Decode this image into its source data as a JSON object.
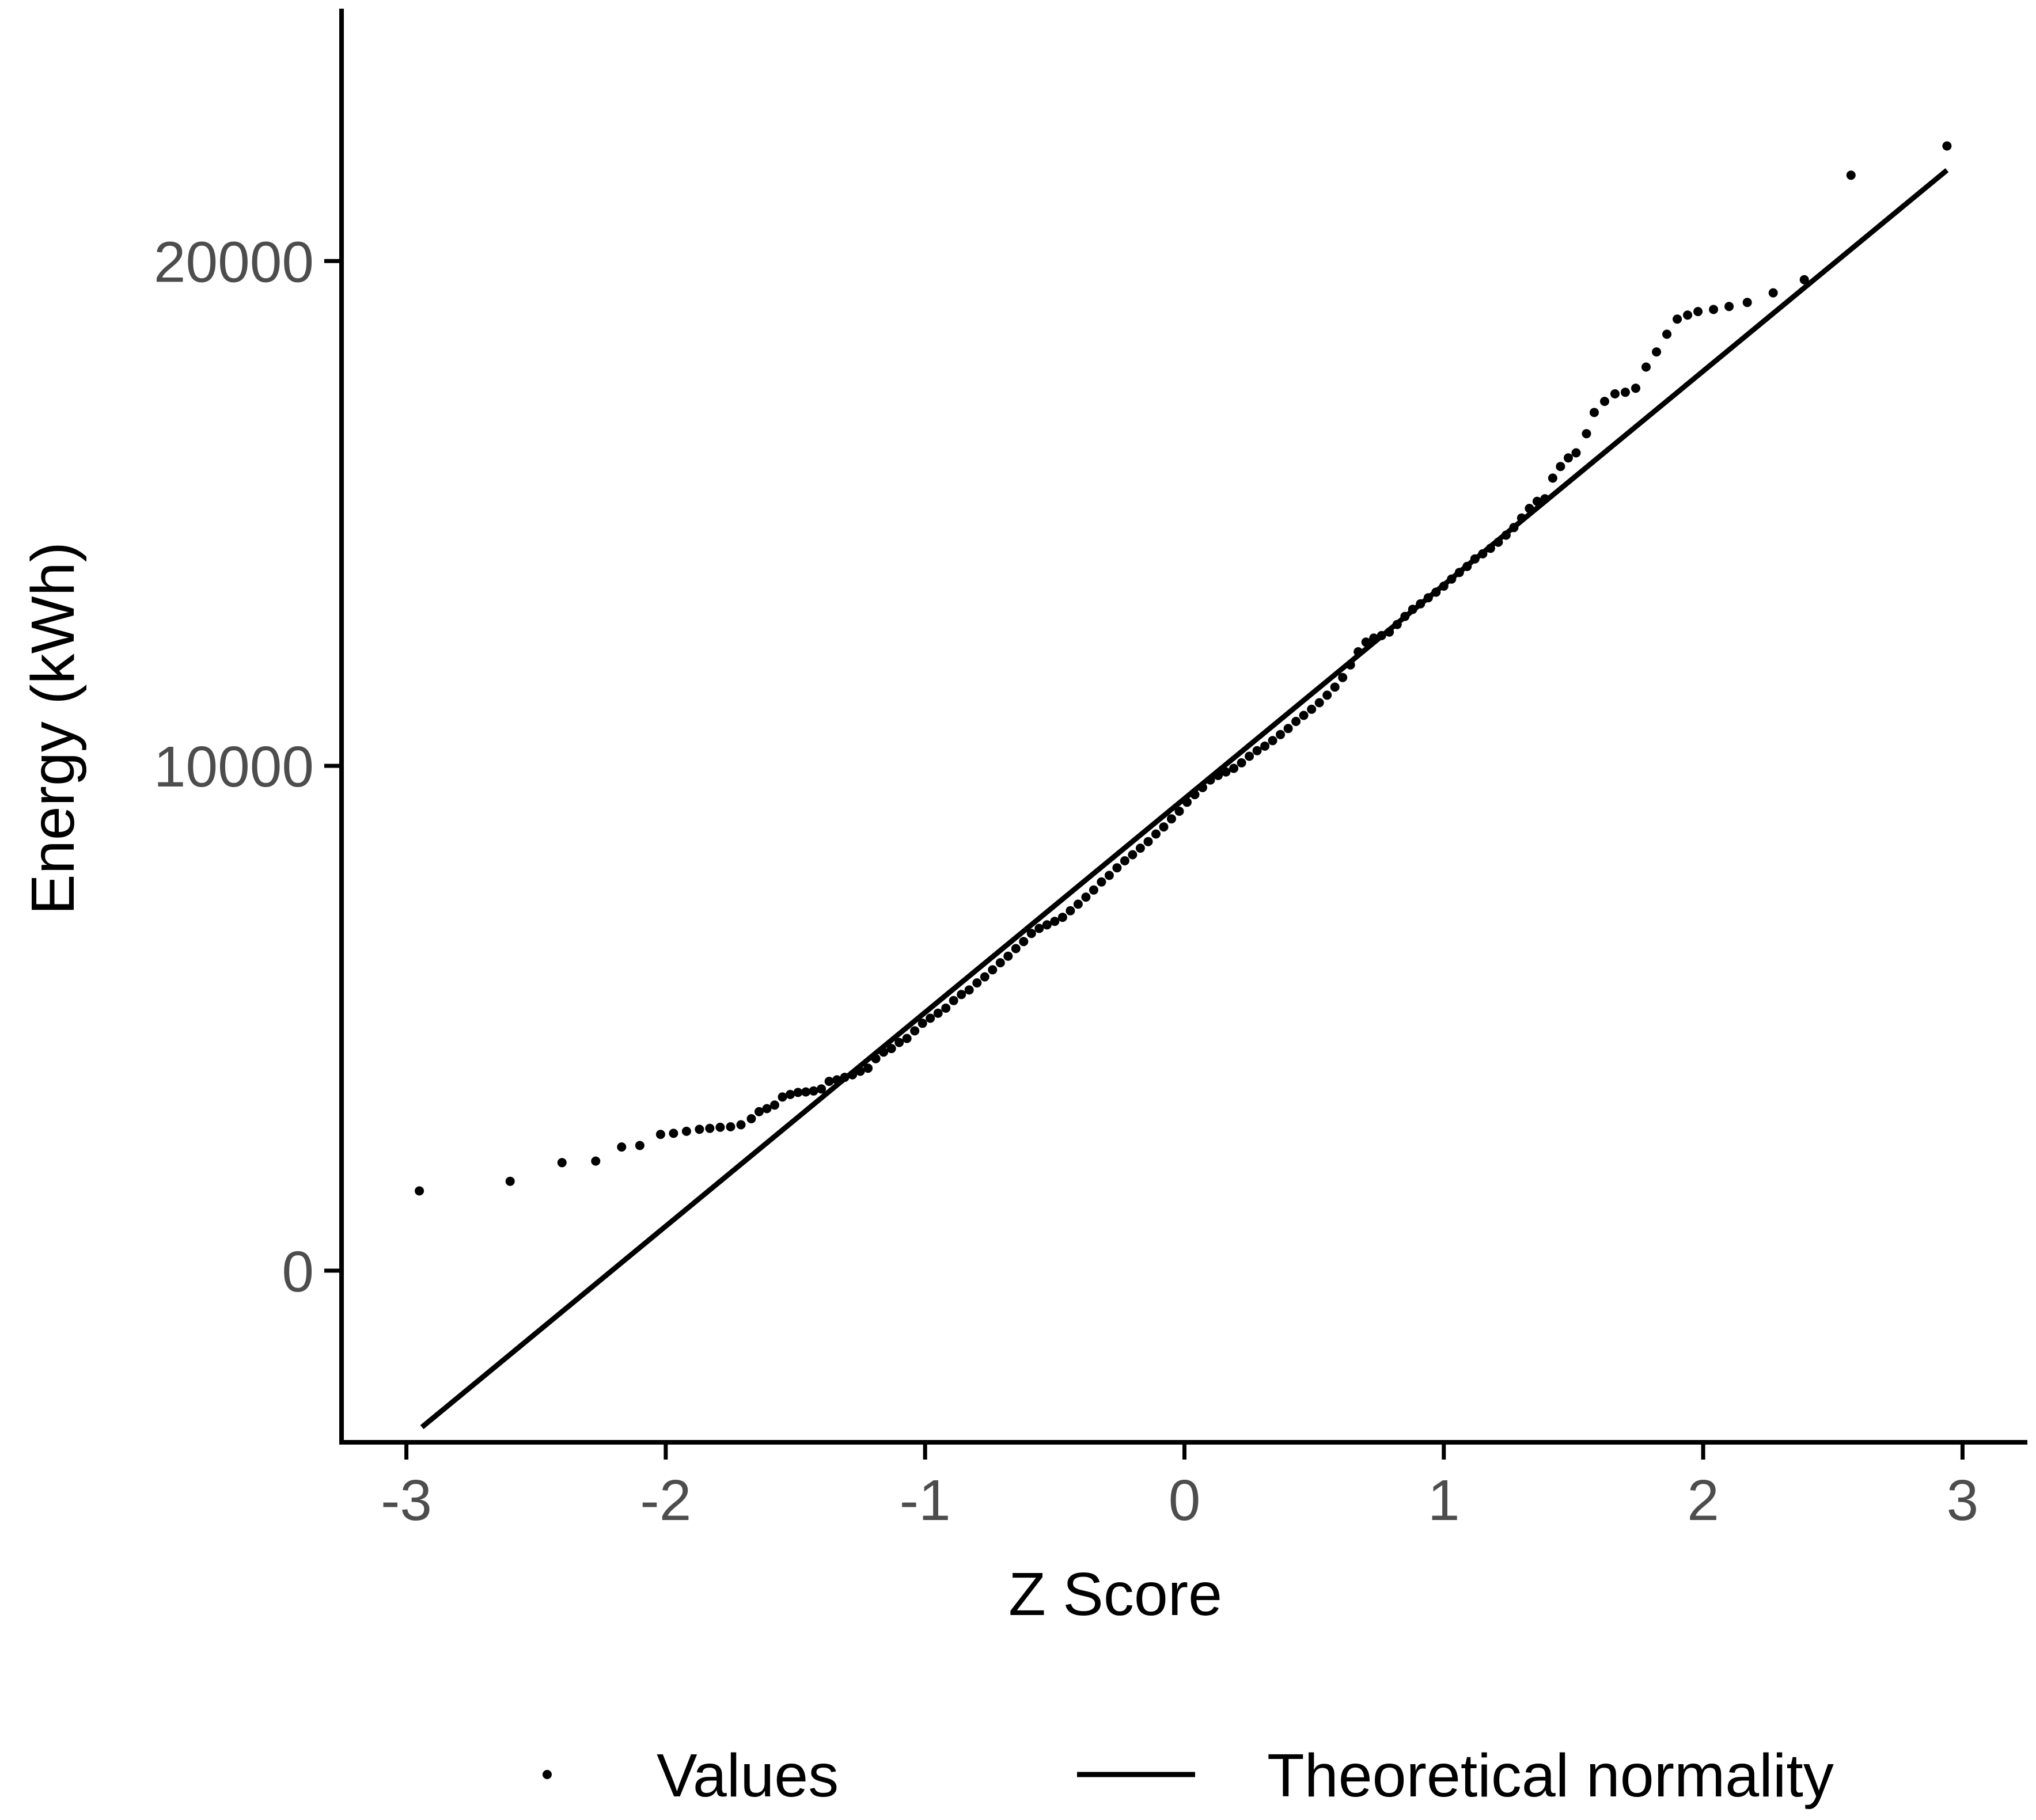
{
  "chart_data": {
    "type": "scatter",
    "title": "",
    "xlabel": "Z Score",
    "ylabel": "Energy (kWh)",
    "xlim": [
      -3.25,
      3.25
    ],
    "ylim": [
      -3400,
      25000
    ],
    "x_ticks": [
      -3,
      -2,
      -1,
      0,
      1,
      2,
      3
    ],
    "x_tick_labels": [
      "-3",
      "-2",
      "-1",
      "0",
      "1",
      "2",
      "3"
    ],
    "y_ticks": [
      0,
      10000,
      20000
    ],
    "y_tick_labels": [
      "0",
      "10000",
      "20000"
    ],
    "grid": false,
    "legend_position": "bottom",
    "series": [
      {
        "name": "Values",
        "kind": "points",
        "points": [
          [
            -2.95,
            1580
          ],
          [
            -2.6,
            1770
          ],
          [
            -2.4,
            2140
          ],
          [
            -2.27,
            2170
          ],
          [
            -2.17,
            2450
          ],
          [
            -2.1,
            2480
          ],
          [
            -2.02,
            2700
          ],
          [
            -1.97,
            2720
          ],
          [
            -1.92,
            2760
          ],
          [
            -1.87,
            2800
          ],
          [
            -1.83,
            2820
          ],
          [
            -1.79,
            2840
          ],
          [
            -1.75,
            2850
          ],
          [
            -1.71,
            2890
          ],
          [
            -1.67,
            3010
          ],
          [
            -1.64,
            3150
          ],
          [
            -1.61,
            3210
          ],
          [
            -1.58,
            3280
          ],
          [
            -1.55,
            3440
          ],
          [
            -1.52,
            3490
          ],
          [
            -1.49,
            3530
          ],
          [
            -1.46,
            3540
          ],
          [
            -1.43,
            3560
          ],
          [
            -1.4,
            3600
          ],
          [
            -1.37,
            3750
          ],
          [
            -1.34,
            3780
          ],
          [
            -1.31,
            3830
          ],
          [
            -1.28,
            3880
          ],
          [
            -1.25,
            3950
          ],
          [
            -1.22,
            4010
          ],
          [
            -1.19,
            4200
          ],
          [
            -1.16,
            4330
          ],
          [
            -1.13,
            4400
          ],
          [
            -1.1,
            4520
          ],
          [
            -1.07,
            4600
          ],
          [
            -1.04,
            4750
          ],
          [
            -1.01,
            4900
          ],
          [
            -0.98,
            5000
          ],
          [
            -0.95,
            5100
          ],
          [
            -0.92,
            5200
          ],
          [
            -0.89,
            5350
          ],
          [
            -0.86,
            5470
          ],
          [
            -0.83,
            5560
          ],
          [
            -0.8,
            5700
          ],
          [
            -0.77,
            5820
          ],
          [
            -0.74,
            5960
          ],
          [
            -0.71,
            6100
          ],
          [
            -0.68,
            6230
          ],
          [
            -0.65,
            6380
          ],
          [
            -0.62,
            6520
          ],
          [
            -0.59,
            6680
          ],
          [
            -0.56,
            6780
          ],
          [
            -0.53,
            6850
          ],
          [
            -0.5,
            6920
          ],
          [
            -0.47,
            7000
          ],
          [
            -0.44,
            7130
          ],
          [
            -0.41,
            7260
          ],
          [
            -0.38,
            7400
          ],
          [
            -0.35,
            7540
          ],
          [
            -0.32,
            7700
          ],
          [
            -0.29,
            7830
          ],
          [
            -0.26,
            7980
          ],
          [
            -0.23,
            8120
          ],
          [
            -0.2,
            8240
          ],
          [
            -0.17,
            8370
          ],
          [
            -0.14,
            8500
          ],
          [
            -0.11,
            8650
          ],
          [
            -0.08,
            8790
          ],
          [
            -0.05,
            8950
          ],
          [
            -0.02,
            9100
          ],
          [
            0.01,
            9280
          ],
          [
            0.04,
            9430
          ],
          [
            0.07,
            9570
          ],
          [
            0.1,
            9720
          ],
          [
            0.13,
            9810
          ],
          [
            0.16,
            9880
          ],
          [
            0.19,
            9950
          ],
          [
            0.22,
            10060
          ],
          [
            0.25,
            10190
          ],
          [
            0.28,
            10300
          ],
          [
            0.31,
            10390
          ],
          [
            0.34,
            10500
          ],
          [
            0.37,
            10620
          ],
          [
            0.4,
            10740
          ],
          [
            0.43,
            10880
          ],
          [
            0.46,
            11000
          ],
          [
            0.49,
            11120
          ],
          [
            0.52,
            11250
          ],
          [
            0.55,
            11400
          ],
          [
            0.58,
            11560
          ],
          [
            0.61,
            11750
          ],
          [
            0.64,
            12000
          ],
          [
            0.67,
            12260
          ],
          [
            0.7,
            12450
          ],
          [
            0.73,
            12530
          ],
          [
            0.76,
            12580
          ],
          [
            0.79,
            12650
          ],
          [
            0.82,
            12800
          ],
          [
            0.85,
            12960
          ],
          [
            0.88,
            13100
          ],
          [
            0.91,
            13210
          ],
          [
            0.94,
            13330
          ],
          [
            0.97,
            13440
          ],
          [
            1.0,
            13560
          ],
          [
            1.03,
            13700
          ],
          [
            1.06,
            13830
          ],
          [
            1.09,
            13950
          ],
          [
            1.12,
            14100
          ],
          [
            1.15,
            14200
          ],
          [
            1.18,
            14310
          ],
          [
            1.21,
            14430
          ],
          [
            1.24,
            14570
          ],
          [
            1.27,
            14720
          ],
          [
            1.3,
            14910
          ],
          [
            1.33,
            15100
          ],
          [
            1.36,
            15240
          ],
          [
            1.39,
            15290
          ],
          [
            1.42,
            15700
          ],
          [
            1.45,
            15930
          ],
          [
            1.48,
            16100
          ],
          [
            1.51,
            16200
          ],
          [
            1.55,
            16580
          ],
          [
            1.58,
            17000
          ],
          [
            1.62,
            17220
          ],
          [
            1.66,
            17370
          ],
          [
            1.7,
            17400
          ],
          [
            1.74,
            17480
          ],
          [
            1.78,
            17900
          ],
          [
            1.82,
            18200
          ],
          [
            1.86,
            18550
          ],
          [
            1.9,
            18850
          ],
          [
            1.94,
            18930
          ],
          [
            1.98,
            19000
          ],
          [
            2.04,
            19040
          ],
          [
            2.1,
            19100
          ],
          [
            2.17,
            19180
          ],
          [
            2.27,
            19370
          ],
          [
            2.39,
            19630
          ],
          [
            2.57,
            21700
          ],
          [
            2.94,
            22280
          ]
        ]
      },
      {
        "name": "Theoretical normality",
        "kind": "line",
        "points": [
          [
            -2.94,
            -3100
          ],
          [
            2.94,
            21800
          ]
        ]
      }
    ]
  }
}
